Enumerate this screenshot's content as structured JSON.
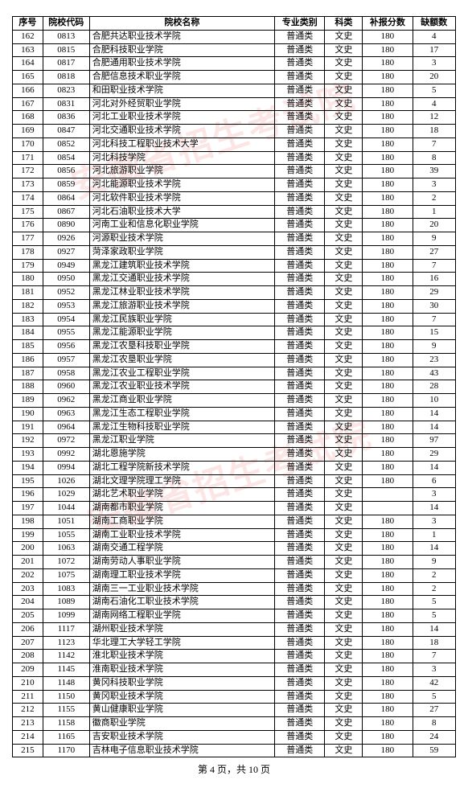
{
  "watermark_text": "安徽省招生考试院",
  "headers": [
    "序号",
    "院校代码",
    "院校名称",
    "专业类别",
    "科类",
    "补报分数",
    "缺额数"
  ],
  "rows": [
    [
      "162",
      "0813",
      "合肥共达职业技术学院",
      "普通类",
      "文史",
      "180",
      "4"
    ],
    [
      "163",
      "0815",
      "合肥科技职业学院",
      "普通类",
      "文史",
      "180",
      "17"
    ],
    [
      "164",
      "0817",
      "合肥通用职业技术学院",
      "普通类",
      "文史",
      "180",
      "3"
    ],
    [
      "165",
      "0818",
      "合肥信息技术职业学院",
      "普通类",
      "文史",
      "180",
      "20"
    ],
    [
      "166",
      "0823",
      "和田职业技术学院",
      "普通类",
      "文史",
      "180",
      "5"
    ],
    [
      "167",
      "0831",
      "河北对外经贸职业学院",
      "普通类",
      "文史",
      "180",
      "4"
    ],
    [
      "168",
      "0836",
      "河北工业职业技术学院",
      "普通类",
      "文史",
      "180",
      "12"
    ],
    [
      "169",
      "0847",
      "河北交通职业技术学院",
      "普通类",
      "文史",
      "180",
      "18"
    ],
    [
      "170",
      "0852",
      "河北科技工程职业技术大学",
      "普通类",
      "文史",
      "180",
      "7"
    ],
    [
      "171",
      "0854",
      "河北科技学院",
      "普通类",
      "文史",
      "180",
      "8"
    ],
    [
      "172",
      "0856",
      "河北旅游职业学院",
      "普通类",
      "文史",
      "180",
      "39"
    ],
    [
      "173",
      "0859",
      "河北能源职业技术学院",
      "普通类",
      "文史",
      "180",
      "3"
    ],
    [
      "174",
      "0864",
      "河北软件职业技术学院",
      "普通类",
      "文史",
      "180",
      "2"
    ],
    [
      "175",
      "0867",
      "河北石油职业技术大学",
      "普通类",
      "文史",
      "180",
      "1"
    ],
    [
      "176",
      "0890",
      "河南工业和信息化职业学院",
      "普通类",
      "文史",
      "180",
      "20"
    ],
    [
      "177",
      "0926",
      "河源职业技术学院",
      "普通类",
      "文史",
      "180",
      "9"
    ],
    [
      "178",
      "0927",
      "菏泽家政职业学院",
      "普通类",
      "文史",
      "180",
      "27"
    ],
    [
      "179",
      "0949",
      "黑龙江建筑职业技术学院",
      "普通类",
      "文史",
      "180",
      "7"
    ],
    [
      "180",
      "0950",
      "黑龙江交通职业技术学院",
      "普通类",
      "文史",
      "180",
      "16"
    ],
    [
      "181",
      "0952",
      "黑龙江林业职业技术学院",
      "普通类",
      "文史",
      "180",
      "29"
    ],
    [
      "182",
      "0953",
      "黑龙江旅游职业技术学院",
      "普通类",
      "文史",
      "180",
      "30"
    ],
    [
      "183",
      "0954",
      "黑龙江民族职业学院",
      "普通类",
      "文史",
      "180",
      "7"
    ],
    [
      "184",
      "0955",
      "黑龙江能源职业学院",
      "普通类",
      "文史",
      "180",
      "15"
    ],
    [
      "185",
      "0956",
      "黑龙江农垦科技职业学院",
      "普通类",
      "文史",
      "180",
      "9"
    ],
    [
      "186",
      "0957",
      "黑龙江农垦职业学院",
      "普通类",
      "文史",
      "180",
      "23"
    ],
    [
      "187",
      "0958",
      "黑龙江农业工程职业学院",
      "普通类",
      "文史",
      "180",
      "43"
    ],
    [
      "188",
      "0960",
      "黑龙江农业职业技术学院",
      "普通类",
      "文史",
      "180",
      "28"
    ],
    [
      "189",
      "0962",
      "黑龙江商业职业学院",
      "普通类",
      "文史",
      "180",
      "10"
    ],
    [
      "190",
      "0963",
      "黑龙江生态工程职业学院",
      "普通类",
      "文史",
      "180",
      "14"
    ],
    [
      "191",
      "0964",
      "黑龙江生物科技职业学院",
      "普通类",
      "文史",
      "180",
      "14"
    ],
    [
      "192",
      "0972",
      "黑龙江职业学院",
      "普通类",
      "文史",
      "180",
      "97"
    ],
    [
      "193",
      "0992",
      "湖北恩施学院",
      "普通类",
      "文史",
      "180",
      "29"
    ],
    [
      "194",
      "0994",
      "湖北工程学院新技术学院",
      "普通类",
      "文史",
      "180",
      "14"
    ],
    [
      "195",
      "1026",
      "湖北文理学院理工学院",
      "普通类",
      "文史",
      "180",
      "6"
    ],
    [
      "196",
      "1029",
      "湖北艺术职业学院",
      "普通类",
      "文史",
      "",
      "3"
    ],
    [
      "197",
      "1044",
      "湖南都市职业学院",
      "普通类",
      "文史",
      "",
      "14"
    ],
    [
      "198",
      "1051",
      "湖南工商职业学院",
      "普通类",
      "文史",
      "180",
      "3"
    ],
    [
      "199",
      "1055",
      "湖南工业职业技术学院",
      "普通类",
      "文史",
      "180",
      "1"
    ],
    [
      "200",
      "1063",
      "湖南交通工程学院",
      "普通类",
      "文史",
      "180",
      "14"
    ],
    [
      "201",
      "1072",
      "湖南劳动人事职业学院",
      "普通类",
      "文史",
      "180",
      "9"
    ],
    [
      "202",
      "1075",
      "湖南理工职业技术学院",
      "普通类",
      "文史",
      "180",
      "2"
    ],
    [
      "203",
      "1083",
      "湖南三一工业职业技术学院",
      "普通类",
      "文史",
      "180",
      "2"
    ],
    [
      "204",
      "1089",
      "湖南石油化工职业技术学院",
      "普通类",
      "文史",
      "180",
      "5"
    ],
    [
      "205",
      "1099",
      "湖南网络工程职业学院",
      "普通类",
      "文史",
      "180",
      "5"
    ],
    [
      "206",
      "1117",
      "湖州职业技术学院",
      "普通类",
      "文史",
      "180",
      "14"
    ],
    [
      "207",
      "1123",
      "华北理工大学轻工学院",
      "普通类",
      "文史",
      "180",
      "18"
    ],
    [
      "208",
      "1142",
      "淮北职业技术学院",
      "普通类",
      "文史",
      "180",
      "7"
    ],
    [
      "209",
      "1145",
      "淮南职业技术学院",
      "普通类",
      "文史",
      "180",
      "3"
    ],
    [
      "210",
      "1148",
      "黄冈科技职业学院",
      "普通类",
      "文史",
      "180",
      "42"
    ],
    [
      "211",
      "1150",
      "黄冈职业技术学院",
      "普通类",
      "文史",
      "180",
      "5"
    ],
    [
      "212",
      "1155",
      "黄山健康职业学院",
      "普通类",
      "文史",
      "180",
      "27"
    ],
    [
      "213",
      "1158",
      "徽商职业学院",
      "普通类",
      "文史",
      "180",
      "8"
    ],
    [
      "214",
      "1165",
      "吉安职业技术学院",
      "普通类",
      "文史",
      "180",
      "24"
    ],
    [
      "215",
      "1170",
      "吉林电子信息职业技术学院",
      "普通类",
      "文史",
      "180",
      "59"
    ]
  ],
  "footer": "第 4 页，共 10 页"
}
